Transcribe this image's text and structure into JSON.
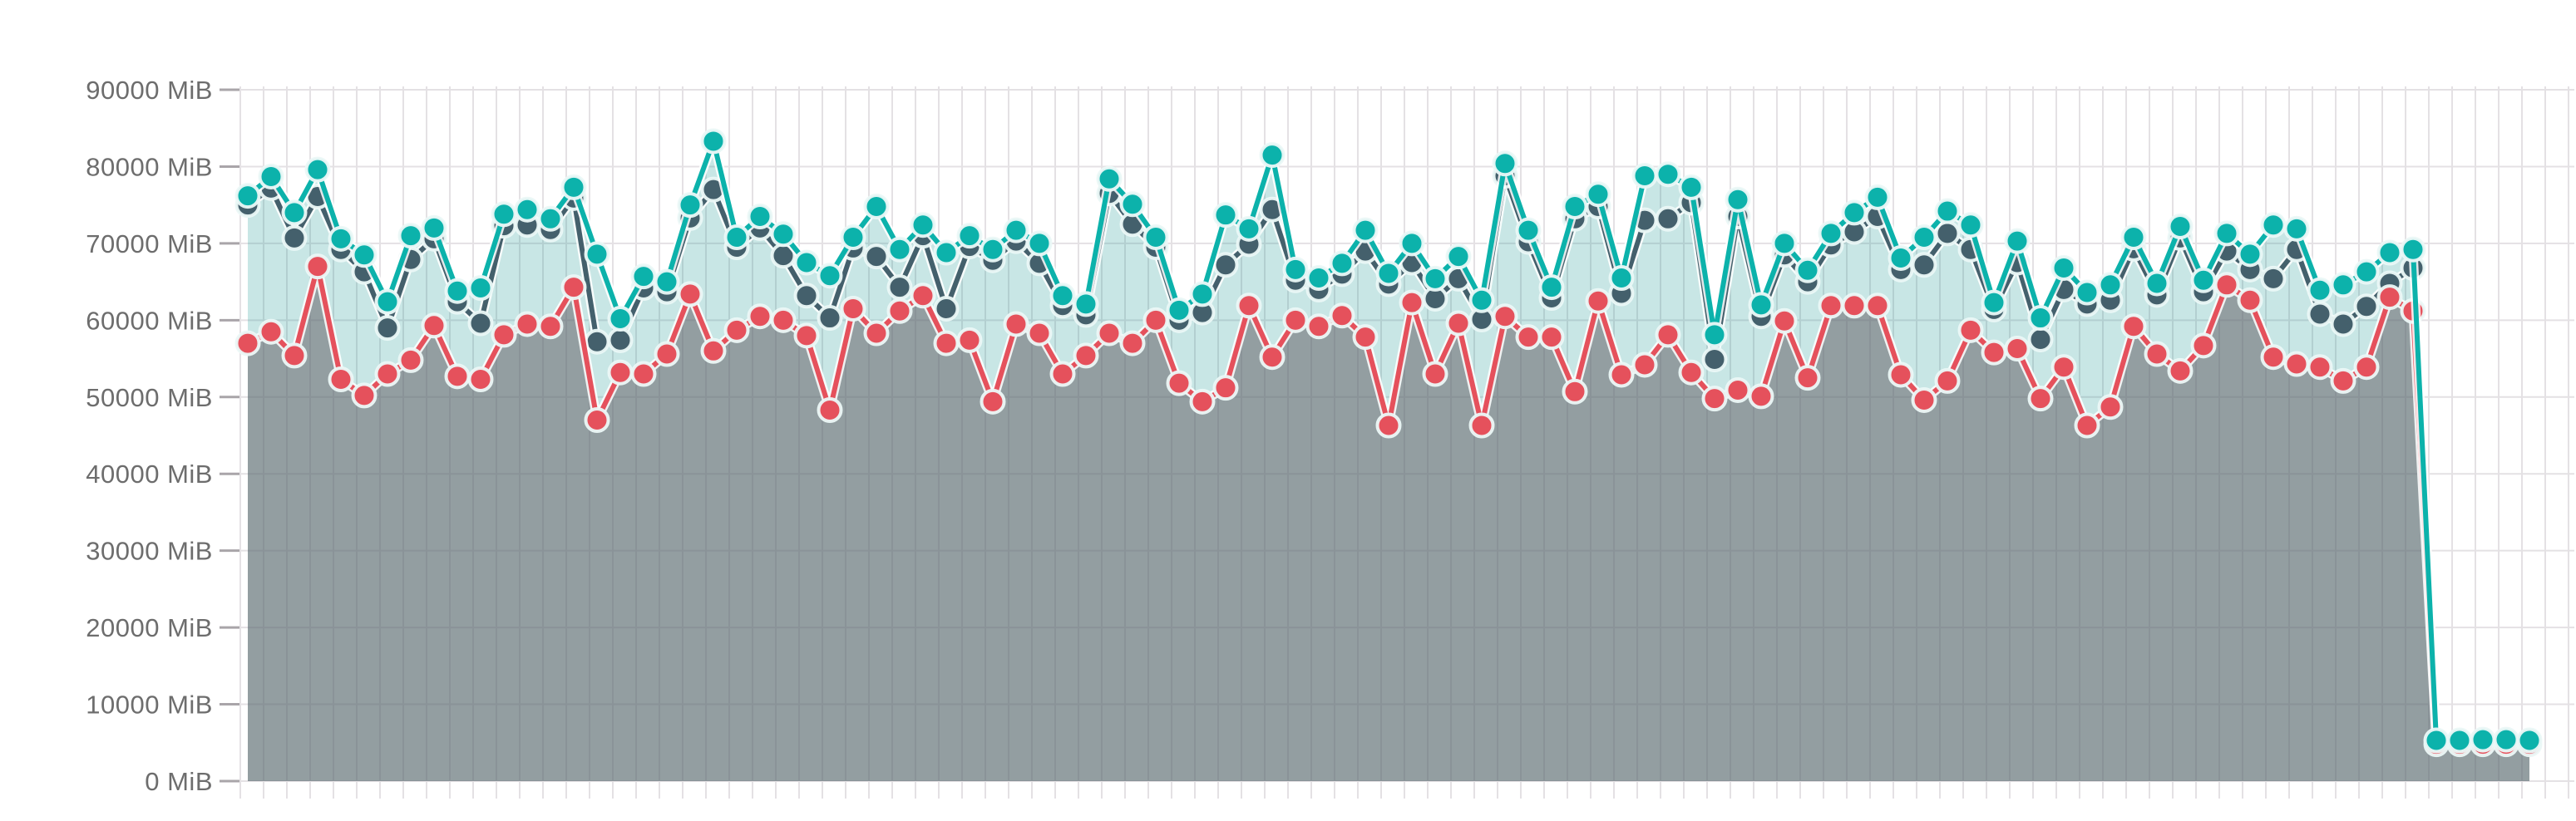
{
  "chart_data": {
    "type": "line",
    "title": "",
    "unit": "MiB",
    "y_axis": {
      "min": 0,
      "max": 90000,
      "tick_step": 10000,
      "ticks": [
        0,
        10000,
        20000,
        30000,
        40000,
        50000,
        60000,
        70000,
        80000,
        90000
      ],
      "tick_labels": [
        "0 MiB",
        "10000 MiB",
        "20000 MiB",
        "30000 MiB",
        "40000 MiB",
        "50000 MiB",
        "60000 MiB",
        "70000 MiB",
        "80000 MiB",
        "90000 MiB"
      ]
    },
    "x_axis": {
      "tick_labels": [],
      "gridlines": true
    },
    "grid": {
      "horizontal": true,
      "vertical": true,
      "color": "#e4e1e4"
    },
    "legend": {
      "visible": false
    },
    "colors": {
      "teal_line": "#0cb2ab",
      "teal_area": "rgba(23,150,147,0.24)",
      "dark_slate_line": "#44606c",
      "red_line": "#e5515c",
      "gray_area": "rgba(104,98,105,0.55)",
      "dot_halo": "rgba(235,248,247,0.95)",
      "axis_label": "#6d6d6d",
      "tick_mark": "#a9a5a9"
    },
    "series": [
      {
        "name": "teal",
        "color": "#0cb2ab",
        "area": "rgba(23,150,147,0.24)",
        "values": [
          76200,
          78700,
          74000,
          79600,
          70600,
          68500,
          62400,
          71000,
          72000,
          63800,
          64200,
          73800,
          74400,
          73200,
          77300,
          68600,
          60200,
          65700,
          65000,
          75000,
          83300,
          70800,
          73500,
          71200,
          67500,
          65800,
          70800,
          74800,
          69200,
          72400,
          68800,
          71000,
          69200,
          71700,
          70000,
          63200,
          62100,
          78400,
          75100,
          70800,
          61300,
          63400,
          73700,
          71900,
          81500,
          66600,
          65500,
          67400,
          71700,
          66100,
          70000,
          65400,
          68300,
          62600,
          80400,
          71700,
          64300,
          74800,
          76400,
          65500,
          78800,
          79000,
          77300,
          58100,
          75700,
          62000,
          70000,
          66500,
          71300,
          74000,
          76000,
          68100,
          70800,
          74200,
          72400,
          62300,
          70300,
          60300,
          66800,
          63600,
          64600,
          70800,
          64800,
          72200,
          65200,
          71300,
          68600,
          72400,
          71900,
          63900,
          64600,
          66300,
          68800,
          69200,
          5300,
          5300,
          5400,
          5400,
          5300
        ]
      },
      {
        "name": "dark-slate",
        "color": "#44606c",
        "area": null,
        "values": [
          75000,
          77200,
          70700,
          76100,
          69200,
          66300,
          59000,
          67900,
          70600,
          62400,
          59600,
          72300,
          72400,
          71800,
          75900,
          57200,
          57400,
          64200,
          63700,
          73300,
          77000,
          69500,
          72000,
          68400,
          63200,
          60300,
          69400,
          68300,
          64300,
          71000,
          61500,
          69600,
          67800,
          70300,
          67400,
          61900,
          60700,
          76500,
          72500,
          69500,
          60000,
          61000,
          67200,
          69900,
          74400,
          65200,
          64000,
          66000,
          69000,
          64700,
          67500,
          62800,
          65400,
          60100,
          78800,
          70200,
          62900,
          73200,
          74800,
          63500,
          73000,
          73200,
          75300,
          54900,
          73500,
          60500,
          68500,
          65000,
          69800,
          71500,
          73500,
          66600,
          67200,
          71300,
          69200,
          61400,
          67500,
          57500,
          64000,
          62100,
          62600,
          69300,
          63300,
          70700,
          63700,
          69000,
          66600,
          65400,
          69200,
          60800,
          59500,
          61800,
          64800,
          66800
        ]
      },
      {
        "name": "red",
        "color": "#e5515c",
        "area": "rgba(104,98,105,0.55)",
        "values": [
          57000,
          58500,
          55400,
          67000,
          52300,
          50200,
          53000,
          54800,
          59300,
          52700,
          52300,
          58100,
          59500,
          59200,
          64300,
          47000,
          53200,
          53000,
          55600,
          63400,
          56000,
          58700,
          60500,
          60000,
          58000,
          48300,
          61500,
          58300,
          61200,
          63200,
          57000,
          57400,
          49400,
          59500,
          58300,
          53000,
          55400,
          58300,
          57000,
          60000,
          51800,
          49400,
          51200,
          61900,
          55200,
          60000,
          59200,
          60600,
          57800,
          46300,
          62300,
          53000,
          59600,
          46300,
          60500,
          57800,
          57800,
          50700,
          62500,
          52900,
          54200,
          58100,
          53200,
          49800,
          50900,
          50100,
          59900,
          52500,
          61900,
          61900,
          61900,
          52900,
          49600,
          52100,
          58700,
          55800,
          56300,
          49800,
          53900,
          46300,
          48700,
          59200,
          55600,
          53400,
          56700,
          64600,
          62600,
          55200,
          54300,
          53900,
          52100,
          53900,
          63000,
          61200,
          4800,
          4800,
          4800,
          4800,
          4800
        ]
      }
    ]
  }
}
